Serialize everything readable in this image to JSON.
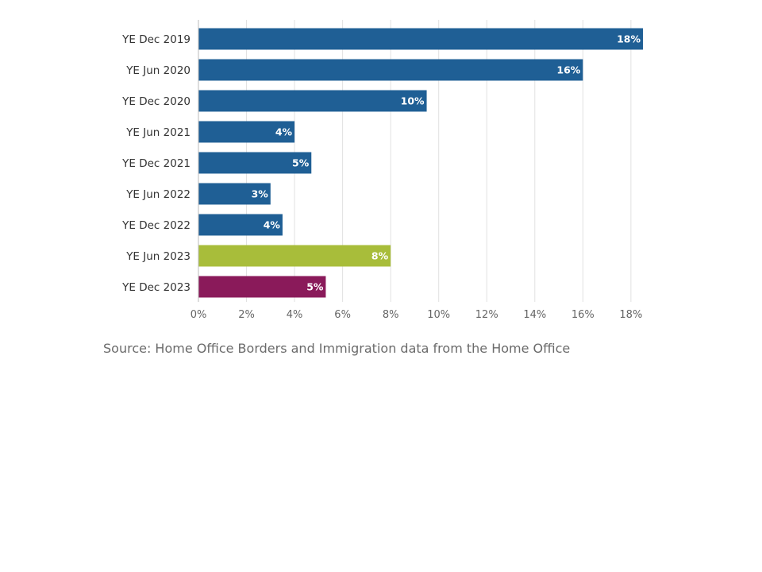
{
  "chart_data": {
    "type": "bar",
    "orientation": "horizontal",
    "categories": [
      "YE Dec 2019",
      "YE Jun 2020",
      "YE Dec 2020",
      "YE Jun 2021",
      "YE Dec 2021",
      "YE Jun 2022",
      "YE Dec 2022",
      "YE Jun 2023",
      "YE Dec 2023"
    ],
    "values": [
      18.5,
      16.0,
      9.5,
      4.0,
      4.7,
      3.0,
      3.5,
      8.0,
      5.3
    ],
    "data_labels": [
      "18%",
      "16%",
      "10%",
      "4%",
      "5%",
      "3%",
      "4%",
      "8%",
      "5%"
    ],
    "bar_colors": [
      "#1f5f95",
      "#1f5f95",
      "#1f5f95",
      "#1f5f95",
      "#1f5f95",
      "#1f5f95",
      "#1f5f95",
      "#a8bd3a",
      "#8a1a5a"
    ],
    "xlim": [
      0,
      18.5
    ],
    "x_ticks": [
      0,
      2,
      4,
      6,
      8,
      10,
      12,
      14,
      16,
      18
    ],
    "x_tick_labels": [
      "0%",
      "2%",
      "4%",
      "6%",
      "8%",
      "10%",
      "12%",
      "14%",
      "16%",
      "18%"
    ],
    "grid": true,
    "title": "",
    "xlabel": "",
    "ylabel": ""
  },
  "source": "Source: Home Office Borders and Immigration data from the Home Office"
}
